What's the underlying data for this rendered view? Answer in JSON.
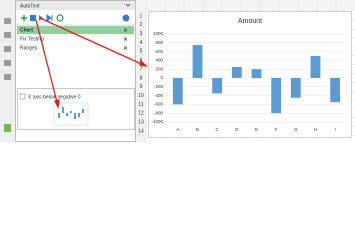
{
  "pane": {
    "title": "AutoText",
    "items": [
      "Chart",
      "Fix Testing",
      "Ranges"
    ],
    "preview_label": "X axis below negative 0"
  },
  "sheet": {
    "rows": [
      1,
      2,
      3,
      4,
      5,
      6,
      7,
      8,
      9,
      10,
      11,
      12,
      13,
      14
    ]
  },
  "chart_data": {
    "type": "bar",
    "title": "Amount",
    "categories": [
      "A",
      "B",
      "C",
      "D",
      "E",
      "F",
      "G",
      "H",
      "I"
    ],
    "low": [
      -600,
      0,
      -350,
      0,
      0,
      -800,
      -450,
      0,
      -550
    ],
    "high": [
      0,
      750,
      0,
      250,
      200,
      0,
      0,
      500,
      0
    ],
    "color": "#5b9bd5",
    "ylim": [
      -1000,
      1000
    ],
    "yticks": [
      1000,
      800,
      600,
      400,
      200,
      0,
      -200,
      -400,
      -600,
      -800,
      -1000
    ]
  }
}
